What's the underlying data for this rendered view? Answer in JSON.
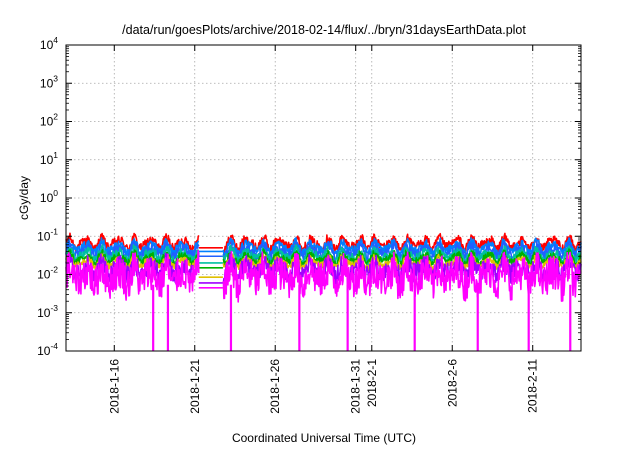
{
  "chart_data": {
    "type": "line",
    "title": "/data/run/goesPlots/archive/2018-02-14/flux/../bryn/31daysEarthData.plot",
    "xlabel": "Coordinated Universal Time (UTC)",
    "ylabel": "cGy/day",
    "yscale": "log",
    "ylim": [
      0.0001,
      10000
    ],
    "xlim": [
      "2018-01-13",
      "2018-02-14"
    ],
    "grid": true,
    "legend": "none",
    "x_ticks": [
      "2018-1-16",
      "2018-1-21",
      "2018-1-26",
      "2018-1-31",
      "2018-2-1",
      "2018-2-6",
      "2018-2-11"
    ],
    "y_ticks": [
      {
        "value": 0.0001,
        "mant": "10",
        "exp": "-4"
      },
      {
        "value": 0.001,
        "mant": "10",
        "exp": "-3"
      },
      {
        "value": 0.01,
        "mant": "10",
        "exp": "-2"
      },
      {
        "value": 0.1,
        "mant": "10",
        "exp": "-1"
      },
      {
        "value": 1,
        "mant": "10",
        "exp": "0"
      },
      {
        "value": 10,
        "mant": "10",
        "exp": "1"
      },
      {
        "value": 100,
        "mant": "10",
        "exp": "2"
      },
      {
        "value": 1000,
        "mant": "10",
        "exp": "3"
      },
      {
        "value": 10000,
        "mant": "10",
        "exp": "4"
      }
    ],
    "data_gap": [
      "2018-01-21T06:00",
      "2018-01-22T18:00"
    ],
    "series": [
      {
        "color": "#ff0000",
        "base": 0.065,
        "jitter": 0.12,
        "gap_value": 0.05
      },
      {
        "color": "#0080ff",
        "base": 0.052,
        "jitter": 0.1,
        "gap_value": 0.04
      },
      {
        "color": "#2060ff",
        "base": 0.04,
        "jitter": 0.12,
        "gap_value": 0.03
      },
      {
        "color": "#00c0a0",
        "base": 0.032,
        "jitter": 0.12,
        "gap_value": 0.02
      },
      {
        "color": "#00b000",
        "base": 0.026,
        "jitter": 0.1,
        "gap_value": 0.015
      },
      {
        "color": "#e0c000",
        "base": 0.021,
        "jitter": 0.08,
        "gap_value": 0.0085
      },
      {
        "color": "#a000ff",
        "base": 0.014,
        "jitter": 0.25,
        "gap_value": 0.006
      },
      {
        "color": "#ff00ff",
        "base": 0.009,
        "jitter": 0.45,
        "gap_value": 0.0045
      }
    ],
    "magenta_dropouts": [
      "2018-01-18T10:00",
      "2018-01-19T08:00",
      "2018-01-23T06:00",
      "2018-01-27T12:00",
      "2018-01-30T12:00",
      "2018-02-03T16:00",
      "2018-02-07T14:00",
      "2018-02-10T18:00",
      "2018-02-13T08:00"
    ]
  }
}
